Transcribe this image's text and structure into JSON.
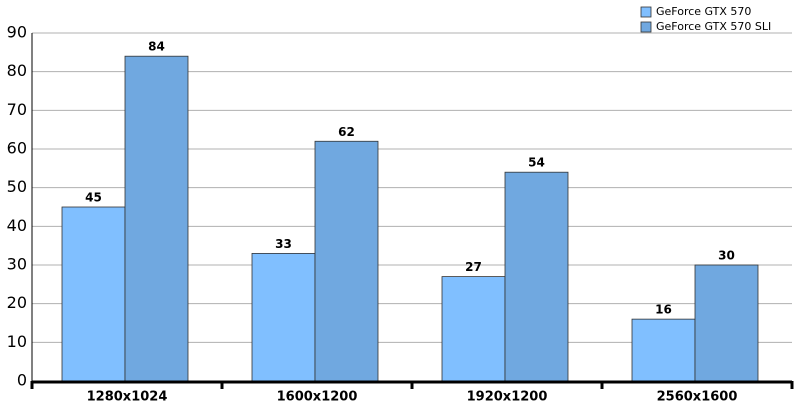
{
  "chart_data": {
    "type": "bar",
    "categories": [
      "1280x1024",
      "1600x1200",
      "1920x1200",
      "2560x1600"
    ],
    "series": [
      {
        "name": "GeForce GTX 570",
        "color": "#80bfff",
        "values": [
          45,
          33,
          27,
          16
        ]
      },
      {
        "name": "GeForce GTX 570 SLI",
        "color": "#70a8e0",
        "values": [
          84,
          62,
          54,
          30
        ]
      }
    ],
    "ylim": [
      0,
      90
    ],
    "yticks": [
      0,
      10,
      20,
      30,
      40,
      50,
      60,
      70,
      80,
      90
    ],
    "grid": true,
    "legend": "top-right"
  }
}
